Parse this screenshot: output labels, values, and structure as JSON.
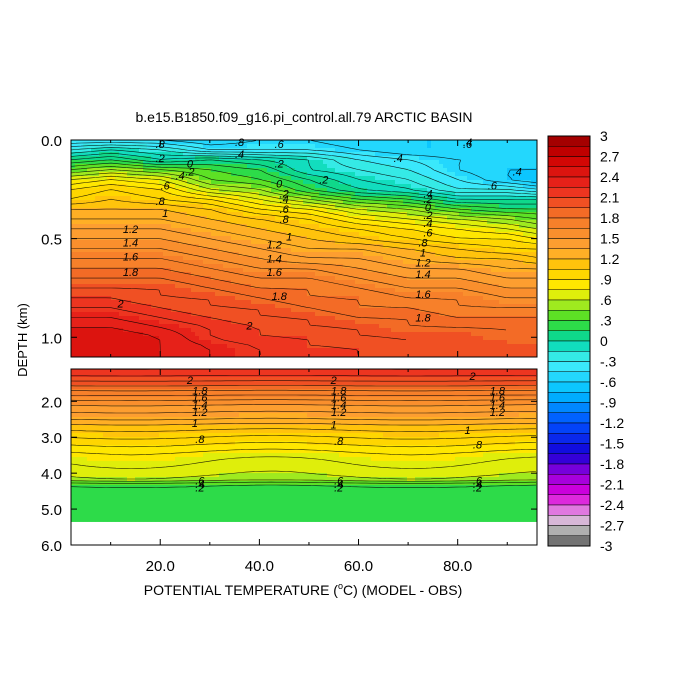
{
  "chart_data": {
    "type": "heatmap",
    "title": "b.e15.B1850.f09_g16.pi_control.all.79 ARCTIC BASIN",
    "xlabel_prefix": "POTENTIAL TEMPERATURE (",
    "xlabel_unit_sup": "o",
    "xlabel_suffix": "C) (MODEL - OBS)",
    "ylabel": "DEPTH (km)",
    "x_ticks": [
      "20.0",
      "40.0",
      "60.0",
      "80.0"
    ],
    "x_tick_values": [
      20,
      40,
      60,
      80
    ],
    "xlim": [
      2,
      96
    ],
    "upper_panel": {
      "ylim_km": [
        0.0,
        1.1
      ],
      "y_ticks": [
        "0.0",
        "0.5",
        "1.0"
      ],
      "y_tick_values": [
        0.0,
        0.5,
        1.0
      ]
    },
    "lower_panel": {
      "ylim_km": [
        1.1,
        6.0
      ],
      "y_ticks": [
        "2.0",
        "3.0",
        "4.0",
        "5.0",
        "6.0"
      ],
      "y_tick_values": [
        2.0,
        3.0,
        4.0,
        5.0,
        6.0
      ],
      "data_bottom_km": 5.35
    },
    "colorbar": {
      "min": -3,
      "max": 3,
      "step": 0.15,
      "labels": [
        "3",
        "2.7",
        "2.4",
        "2.1",
        "1.8",
        "1.5",
        "1.2",
        ".9",
        ".6",
        ".3",
        "0",
        "-.3",
        "-.6",
        "-.9",
        "-1.2",
        "-1.5",
        "-1.8",
        "-2.1",
        "-2.4",
        "-2.7",
        "-3"
      ]
    },
    "upper_profile": {
      "depth_km": [
        0.0,
        0.05,
        0.1,
        0.15,
        0.2,
        0.25,
        0.3,
        0.35,
        0.4,
        0.45,
        0.5,
        0.55,
        0.6,
        0.65,
        0.7,
        0.75,
        0.8,
        0.85,
        0.9,
        0.95,
        1.0,
        1.05,
        1.1
      ],
      "x": [
        2,
        10,
        20,
        30,
        40,
        50,
        60,
        70,
        80,
        90,
        96
      ],
      "values": [
        [
          -0.5,
          -0.5,
          -0.5,
          -0.6,
          -0.5,
          -0.5,
          -0.6,
          -0.6,
          -0.6,
          -0.6,
          -0.6
        ],
        [
          -0.2,
          -0.1,
          -0.2,
          -0.4,
          -0.4,
          -0.4,
          -0.5,
          -0.6,
          -0.6,
          -0.6,
          -0.6
        ],
        [
          0.1,
          0.2,
          0.0,
          0.1,
          0.0,
          -0.1,
          -0.3,
          -0.4,
          -0.5,
          -0.5,
          -0.5
        ],
        [
          0.4,
          0.5,
          0.4,
          0.3,
          0.2,
          -0.1,
          -0.2,
          -0.3,
          -0.5,
          -0.6,
          -0.6
        ],
        [
          0.7,
          0.8,
          0.7,
          0.4,
          0.3,
          0.1,
          -0.1,
          -0.2,
          -0.4,
          -0.6,
          -0.7
        ],
        [
          0.9,
          1.0,
          0.9,
          0.6,
          0.5,
          0.2,
          0.0,
          -0.1,
          -0.3,
          -0.3,
          -0.4
        ],
        [
          1.0,
          1.1,
          1.0,
          0.9,
          0.7,
          0.5,
          0.3,
          0.2,
          0.0,
          0.0,
          0.0
        ],
        [
          1.2,
          1.2,
          1.2,
          1.1,
          0.9,
          0.8,
          0.6,
          0.5,
          0.3,
          0.2,
          0.2
        ],
        [
          1.3,
          1.3,
          1.3,
          1.2,
          1.1,
          1.0,
          0.8,
          0.7,
          0.6,
          0.5,
          0.4
        ],
        [
          1.4,
          1.4,
          1.4,
          1.3,
          1.2,
          1.1,
          1.0,
          0.9,
          0.8,
          0.7,
          0.6
        ],
        [
          1.5,
          1.5,
          1.5,
          1.4,
          1.3,
          1.2,
          1.1,
          1.0,
          0.9,
          0.9,
          0.8
        ],
        [
          1.6,
          1.6,
          1.6,
          1.5,
          1.4,
          1.3,
          1.3,
          1.2,
          1.1,
          1.0,
          1.0
        ],
        [
          1.7,
          1.7,
          1.7,
          1.6,
          1.5,
          1.4,
          1.4,
          1.3,
          1.2,
          1.2,
          1.1
        ],
        [
          1.8,
          1.8,
          1.8,
          1.7,
          1.6,
          1.6,
          1.5,
          1.4,
          1.4,
          1.3,
          1.3
        ],
        [
          1.9,
          1.9,
          1.9,
          1.8,
          1.7,
          1.7,
          1.6,
          1.5,
          1.5,
          1.4,
          1.4
        ],
        [
          2.0,
          2.0,
          2.0,
          1.9,
          1.8,
          1.8,
          1.7,
          1.6,
          1.6,
          1.5,
          1.5
        ],
        [
          2.1,
          2.1,
          2.0,
          2.0,
          1.9,
          1.8,
          1.8,
          1.7,
          1.7,
          1.6,
          1.6
        ],
        [
          2.2,
          2.2,
          2.1,
          2.0,
          2.0,
          1.9,
          1.8,
          1.8,
          1.7,
          1.7,
          1.7
        ],
        [
          2.3,
          2.3,
          2.2,
          2.1,
          2.0,
          2.0,
          1.9,
          1.9,
          1.8,
          1.8,
          1.8
        ],
        [
          2.4,
          2.4,
          2.3,
          2.2,
          2.1,
          2.0,
          2.0,
          1.9,
          1.9,
          1.9,
          1.9
        ],
        [
          2.5,
          2.5,
          2.4,
          2.2,
          2.1,
          2.1,
          2.0,
          2.0,
          2.0,
          1.9,
          1.9
        ],
        [
          2.5,
          2.5,
          2.4,
          2.3,
          2.2,
          2.1,
          2.1,
          2.0,
          2.0,
          2.0,
          2.0
        ],
        [
          2.5,
          2.5,
          2.4,
          2.3,
          2.2,
          2.2,
          2.1,
          2.0,
          2.0,
          2.0,
          2.0
        ]
      ]
    },
    "lower_profile": {
      "depth_km": [
        1.1,
        1.3,
        1.5,
        1.7,
        1.9,
        2.1,
        2.3,
        2.5,
        2.7,
        2.9,
        3.1,
        3.3,
        3.5,
        3.7,
        3.9,
        4.1,
        4.2,
        4.25,
        4.3,
        4.35,
        4.5,
        5.35
      ],
      "values": [
        2.2,
        2.1,
        1.95,
        1.8,
        1.65,
        1.5,
        1.4,
        1.3,
        1.15,
        1.05,
        0.95,
        0.85,
        0.75,
        0.7,
        0.65,
        0.6,
        0.55,
        0.45,
        0.35,
        0.25,
        0.25,
        0.25
      ]
    },
    "contour_labels": [
      {
        "text": ".8",
        "x": 20,
        "d": 0.02,
        "p": "u"
      },
      {
        "text": ".6",
        "x": 44,
        "d": 0.02,
        "p": "u"
      },
      {
        "text": ".8",
        "x": 36,
        "d": 0.01,
        "p": "u"
      },
      {
        "text": ".6",
        "x": 82,
        "d": 0.02,
        "p": "u"
      },
      {
        "text": ".4",
        "x": 82,
        "d": 0.01,
        "p": "u"
      },
      {
        "text": ".4",
        "x": 36,
        "d": 0.07,
        "p": "u"
      },
      {
        "text": ".2",
        "x": 20,
        "d": 0.09,
        "p": "u"
      },
      {
        "text": "0",
        "x": 26,
        "d": 0.12,
        "p": "u"
      },
      {
        "text": ".2",
        "x": 44,
        "d": 0.12,
        "p": "u"
      },
      {
        "text": ".4",
        "x": 68,
        "d": 0.09,
        "p": "u"
      },
      {
        "text": ".2",
        "x": 26,
        "d": 0.16,
        "p": "u"
      },
      {
        "text": ".2",
        "x": 53,
        "d": 0.2,
        "p": "u"
      },
      {
        "text": ".6",
        "x": 87,
        "d": 0.23,
        "p": "u"
      },
      {
        "text": ".4",
        "x": 92,
        "d": 0.16,
        "p": "u"
      },
      {
        "text": ".4",
        "x": 24,
        "d": 0.18,
        "p": "u"
      },
      {
        "text": ".6",
        "x": 21,
        "d": 0.23,
        "p": "u"
      },
      {
        "text": ".8",
        "x": 20,
        "d": 0.31,
        "p": "u"
      },
      {
        "text": "1",
        "x": 21,
        "d": 0.37,
        "p": "u"
      },
      {
        "text": "0",
        "x": 44,
        "d": 0.22,
        "p": "u"
      },
      {
        "text": ".2",
        "x": 45,
        "d": 0.27,
        "p": "u"
      },
      {
        "text": ".4",
        "x": 45,
        "d": 0.3,
        "p": "u"
      },
      {
        "text": ".6",
        "x": 45,
        "d": 0.35,
        "p": "u"
      },
      {
        "text": ".8",
        "x": 45,
        "d": 0.4,
        "p": "u"
      },
      {
        "text": "1",
        "x": 46,
        "d": 0.49,
        "p": "u"
      },
      {
        "text": ".4",
        "x": 74,
        "d": 0.27,
        "p": "u"
      },
      {
        "text": ".2",
        "x": 74,
        "d": 0.3,
        "p": "u"
      },
      {
        "text": "0",
        "x": 74,
        "d": 0.34,
        "p": "u"
      },
      {
        "text": ".2",
        "x": 74,
        "d": 0.38,
        "p": "u"
      },
      {
        "text": ".4",
        "x": 74,
        "d": 0.42,
        "p": "u"
      },
      {
        "text": ".6",
        "x": 74,
        "d": 0.47,
        "p": "u"
      },
      {
        "text": ".8",
        "x": 73,
        "d": 0.52,
        "p": "u"
      },
      {
        "text": "1",
        "x": 73,
        "d": 0.57,
        "p": "u"
      },
      {
        "text": "1.2",
        "x": 14,
        "d": 0.45,
        "p": "u"
      },
      {
        "text": "1.4",
        "x": 14,
        "d": 0.52,
        "p": "u"
      },
      {
        "text": "1.6",
        "x": 14,
        "d": 0.59,
        "p": "u"
      },
      {
        "text": "1.8",
        "x": 14,
        "d": 0.67,
        "p": "u"
      },
      {
        "text": "2",
        "x": 12,
        "d": 0.83,
        "p": "u"
      },
      {
        "text": "1.2",
        "x": 43,
        "d": 0.53,
        "p": "u"
      },
      {
        "text": "1.4",
        "x": 43,
        "d": 0.6,
        "p": "u"
      },
      {
        "text": "1.6",
        "x": 43,
        "d": 0.67,
        "p": "u"
      },
      {
        "text": "1.8",
        "x": 44,
        "d": 0.79,
        "p": "u"
      },
      {
        "text": "2",
        "x": 38,
        "d": 0.94,
        "p": "u"
      },
      {
        "text": "1.2",
        "x": 73,
        "d": 0.62,
        "p": "u"
      },
      {
        "text": "1.4",
        "x": 73,
        "d": 0.68,
        "p": "u"
      },
      {
        "text": "1.6",
        "x": 73,
        "d": 0.78,
        "p": "u"
      },
      {
        "text": "1.8",
        "x": 73,
        "d": 0.9,
        "p": "u"
      },
      {
        "text": "2",
        "x": 26,
        "d": 1.4,
        "p": "l"
      },
      {
        "text": "1.8",
        "x": 28,
        "d": 1.7,
        "p": "l"
      },
      {
        "text": "1.6",
        "x": 28,
        "d": 1.9,
        "p": "l"
      },
      {
        "text": "1.4",
        "x": 28,
        "d": 2.1,
        "p": "l"
      },
      {
        "text": "1.2",
        "x": 28,
        "d": 2.3,
        "p": "l"
      },
      {
        "text": "1",
        "x": 27,
        "d": 2.6,
        "p": "l"
      },
      {
        "text": ".8",
        "x": 28,
        "d": 3.05,
        "p": "l"
      },
      {
        "text": "2",
        "x": 55,
        "d": 1.4,
        "p": "l"
      },
      {
        "text": "1.8",
        "x": 56,
        "d": 1.7,
        "p": "l"
      },
      {
        "text": "1.6",
        "x": 56,
        "d": 1.9,
        "p": "l"
      },
      {
        "text": "1.4",
        "x": 56,
        "d": 2.1,
        "p": "l"
      },
      {
        "text": "1.2",
        "x": 56,
        "d": 2.3,
        "p": "l"
      },
      {
        "text": "1",
        "x": 55,
        "d": 2.65,
        "p": "l"
      },
      {
        "text": ".8",
        "x": 56,
        "d": 3.1,
        "p": "l"
      },
      {
        "text": "2",
        "x": 83,
        "d": 1.3,
        "p": "l"
      },
      {
        "text": "1.8",
        "x": 88,
        "d": 1.7,
        "p": "l"
      },
      {
        "text": "1.6",
        "x": 88,
        "d": 1.9,
        "p": "l"
      },
      {
        "text": "1.4",
        "x": 88,
        "d": 2.1,
        "p": "l"
      },
      {
        "text": "1.2",
        "x": 88,
        "d": 2.3,
        "p": "l"
      },
      {
        "text": "1",
        "x": 82,
        "d": 2.8,
        "p": "l"
      },
      {
        "text": ".8",
        "x": 84,
        "d": 3.2,
        "p": "l"
      },
      {
        "text": ".6",
        "x": 28,
        "d": 4.2,
        "p": "l"
      },
      {
        "text": ".4",
        "x": 28,
        "d": 4.3,
        "p": "l"
      },
      {
        "text": ".2",
        "x": 28,
        "d": 4.4,
        "p": "l"
      },
      {
        "text": ".6",
        "x": 56,
        "d": 4.2,
        "p": "l"
      },
      {
        "text": ".4",
        "x": 56,
        "d": 4.3,
        "p": "l"
      },
      {
        "text": ".2",
        "x": 56,
        "d": 4.4,
        "p": "l"
      },
      {
        "text": ".6",
        "x": 84,
        "d": 4.2,
        "p": "l"
      },
      {
        "text": ".4",
        "x": 84,
        "d": 4.3,
        "p": "l"
      },
      {
        "text": ".2",
        "x": 84,
        "d": 4.4,
        "p": "l"
      }
    ]
  }
}
